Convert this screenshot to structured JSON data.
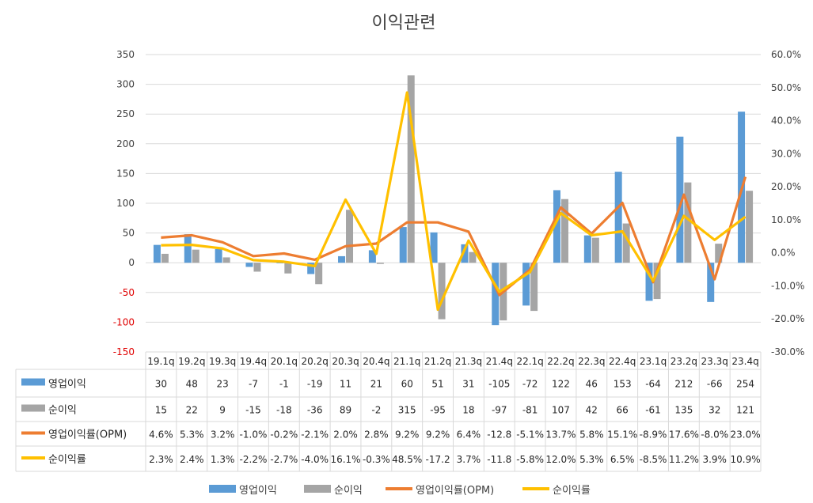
{
  "chart_data": {
    "type": "bar",
    "title": "이익관련",
    "categories": [
      "19.1q",
      "19.2q",
      "19.3q",
      "19.4q",
      "20.1q",
      "20.2q",
      "20.3q",
      "20.4q",
      "21.1q",
      "21.2q",
      "21.3q",
      "21.4q",
      "22.1q",
      "22.2q",
      "22.3q",
      "22.4q",
      "23.1q",
      "23.2q",
      "23.3q",
      "23.4q"
    ],
    "left_axis": {
      "ylim": [
        -150,
        350
      ],
      "ticks": [
        "350",
        "300",
        "250",
        "200",
        "150",
        "100",
        "50",
        "0",
        "-50",
        "-100",
        "-150"
      ]
    },
    "right_axis": {
      "ylim": [
        -30,
        60
      ],
      "ticks": [
        "60.0%",
        "50.0%",
        "40.0%",
        "30.0%",
        "20.0%",
        "10.0%",
        "0.0%",
        "-10.0%",
        "-20.0%",
        "-30.0%"
      ]
    },
    "series": [
      {
        "name": "영업이익",
        "kind": "bar",
        "axis": "left",
        "color": "#5b9bd5",
        "values": [
          30,
          48,
          23,
          -7,
          -1,
          -19,
          11,
          21,
          60,
          51,
          31,
          -105,
          -72,
          122,
          46,
          153,
          -64,
          212,
          -66,
          254
        ],
        "labels": [
          "30",
          "48",
          "23",
          "-7",
          "-1",
          "-19",
          "11",
          "21",
          "60",
          "51",
          "31",
          "-105",
          "-72",
          "122",
          "46",
          "153",
          "-64",
          "212",
          "-66",
          "254"
        ]
      },
      {
        "name": "순이익",
        "kind": "bar",
        "axis": "left",
        "color": "#a5a5a5",
        "values": [
          15,
          22,
          9,
          -15,
          -18,
          -36,
          89,
          -2,
          315,
          -95,
          18,
          -97,
          -81,
          107,
          42,
          66,
          -61,
          135,
          32,
          121
        ],
        "labels": [
          "15",
          "22",
          "9",
          "-15",
          "-18",
          "-36",
          "89",
          "-2",
          "315",
          "-95",
          "18",
          "-97",
          "-81",
          "107",
          "42",
          "66",
          "-61",
          "135",
          "32",
          "121"
        ]
      },
      {
        "name": "영업이익률(OPM)",
        "kind": "line",
        "axis": "right",
        "color": "#ed7d31",
        "values": [
          4.6,
          5.3,
          3.2,
          -1.0,
          -0.2,
          -2.1,
          2.0,
          2.8,
          9.2,
          9.2,
          6.4,
          -12.8,
          -5.1,
          13.7,
          5.8,
          15.1,
          -8.9,
          17.6,
          -8.0,
          23.0
        ],
        "labels": [
          "4.6%",
          "5.3%",
          "3.2%",
          "-1.0%",
          "-0.2%",
          "-2.1%",
          "2.0%",
          "2.8%",
          "9.2%",
          "9.2%",
          "6.4%",
          "-12.8",
          "-5.1%",
          "13.7%",
          "5.8%",
          "15.1%",
          "-8.9%",
          "17.6%",
          "-8.0%",
          "23.0%"
        ]
      },
      {
        "name": "순이익률",
        "kind": "line",
        "axis": "right",
        "color": "#ffc000",
        "values": [
          2.3,
          2.4,
          1.3,
          -2.2,
          -2.7,
          -4.0,
          16.1,
          -0.3,
          48.5,
          -17.2,
          3.7,
          -11.8,
          -5.8,
          12.0,
          5.3,
          6.5,
          -8.5,
          11.2,
          3.9,
          10.9
        ],
        "labels": [
          "2.3%",
          "2.4%",
          "1.3%",
          "-2.2%",
          "-2.7%",
          "-4.0%",
          "16.1%",
          "-0.3%",
          "48.5%",
          "-17.2",
          "3.7%",
          "-11.8",
          "-5.8%",
          "12.0%",
          "5.3%",
          "6.5%",
          "-8.5%",
          "11.2%",
          "3.9%",
          "10.9%"
        ]
      }
    ],
    "legend": [
      "영업이익",
      "순이익",
      "영업이익률(OPM)",
      "순이익률"
    ],
    "legend_position": "bottom",
    "data_table": true,
    "grid": true
  }
}
